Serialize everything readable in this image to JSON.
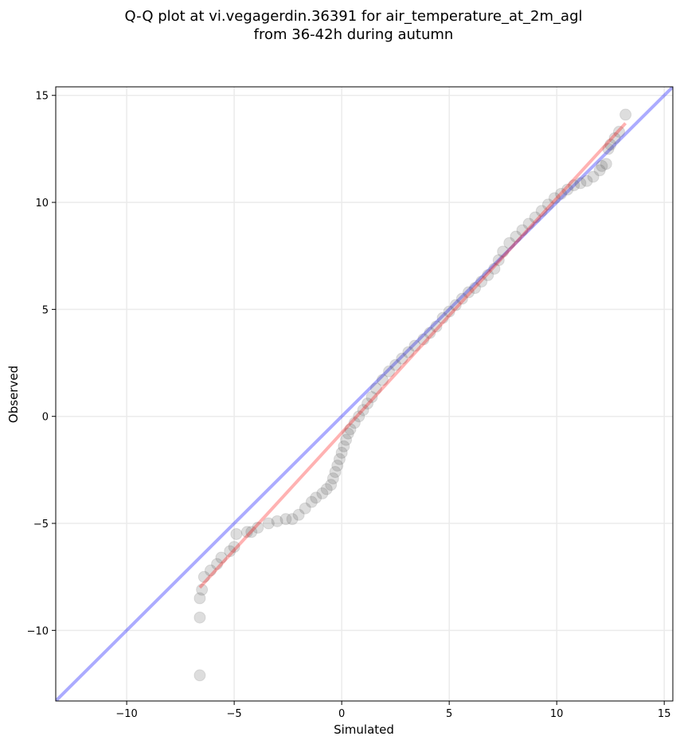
{
  "chart_data": {
    "type": "scatter",
    "title_line1": "Q-Q plot at vi.vegagerdin.36391 for air_temperature_at_2m_agl",
    "title_line2": "from 36-42h during autumn",
    "xlabel": "Simulated",
    "ylabel": "Observed",
    "xlim": [
      -13.3,
      15.4
    ],
    "ylim": [
      -13.3,
      15.4
    ],
    "xticks": [
      -10,
      -5,
      0,
      5,
      10,
      15
    ],
    "yticks": [
      -10,
      -5,
      0,
      5,
      10,
      15
    ],
    "xtick_labels": [
      "−10",
      "−5",
      "0",
      "5",
      "10",
      "15"
    ],
    "ytick_labels": [
      "−10",
      "−5",
      "0",
      "5",
      "10",
      "15"
    ],
    "grid": true,
    "reference_line": {
      "name": "1:1",
      "color": "#0000ff",
      "from": [
        -13.3,
        -13.3
      ],
      "to": [
        15.4,
        15.4
      ]
    },
    "fit_line": {
      "color": "#ff0000",
      "from": [
        -6.6,
        -8.0
      ],
      "to": [
        13.2,
        13.7
      ]
    },
    "point_color": "#555555",
    "series": [
      {
        "values": [
          [
            -6.6,
            -12.1
          ],
          [
            -6.6,
            -9.4
          ],
          [
            -6.6,
            -8.5
          ],
          [
            -6.5,
            -8.1
          ],
          [
            -6.4,
            -7.5
          ],
          [
            -6.1,
            -7.2
          ],
          [
            -5.8,
            -6.9
          ],
          [
            -5.6,
            -6.6
          ],
          [
            -5.2,
            -6.3
          ],
          [
            -5.0,
            -6.1
          ],
          [
            -4.9,
            -5.5
          ],
          [
            -4.4,
            -5.4
          ],
          [
            -4.2,
            -5.4
          ],
          [
            -3.9,
            -5.2
          ],
          [
            -3.4,
            -5.0
          ],
          [
            -3.0,
            -4.9
          ],
          [
            -2.6,
            -4.8
          ],
          [
            -2.3,
            -4.8
          ],
          [
            -2.0,
            -4.6
          ],
          [
            -1.7,
            -4.3
          ],
          [
            -1.4,
            -4.0
          ],
          [
            -1.2,
            -3.8
          ],
          [
            -0.9,
            -3.6
          ],
          [
            -0.7,
            -3.4
          ],
          [
            -0.5,
            -3.2
          ],
          [
            -0.4,
            -2.9
          ],
          [
            -0.3,
            -2.6
          ],
          [
            -0.2,
            -2.3
          ],
          [
            -0.1,
            -2.0
          ],
          [
            0.0,
            -1.7
          ],
          [
            0.1,
            -1.4
          ],
          [
            0.2,
            -1.1
          ],
          [
            0.3,
            -0.8
          ],
          [
            0.4,
            -0.6
          ],
          [
            0.6,
            -0.3
          ],
          [
            0.8,
            0.0
          ],
          [
            1.0,
            0.3
          ],
          [
            1.2,
            0.6
          ],
          [
            1.4,
            0.9
          ],
          [
            1.6,
            1.3
          ],
          [
            1.9,
            1.7
          ],
          [
            2.2,
            2.1
          ],
          [
            2.5,
            2.4
          ],
          [
            2.8,
            2.7
          ],
          [
            3.1,
            3.0
          ],
          [
            3.4,
            3.3
          ],
          [
            3.8,
            3.6
          ],
          [
            4.1,
            3.9
          ],
          [
            4.4,
            4.2
          ],
          [
            4.7,
            4.6
          ],
          [
            5.0,
            4.9
          ],
          [
            5.3,
            5.2
          ],
          [
            5.6,
            5.5
          ],
          [
            5.9,
            5.8
          ],
          [
            6.2,
            6.0
          ],
          [
            6.5,
            6.3
          ],
          [
            6.8,
            6.6
          ],
          [
            7.1,
            6.9
          ],
          [
            7.3,
            7.3
          ],
          [
            7.5,
            7.7
          ],
          [
            7.8,
            8.1
          ],
          [
            8.1,
            8.4
          ],
          [
            8.4,
            8.7
          ],
          [
            8.7,
            9.0
          ],
          [
            9.0,
            9.3
          ],
          [
            9.3,
            9.6
          ],
          [
            9.6,
            9.9
          ],
          [
            9.9,
            10.2
          ],
          [
            10.2,
            10.4
          ],
          [
            10.5,
            10.6
          ],
          [
            10.8,
            10.8
          ],
          [
            11.1,
            10.9
          ],
          [
            11.4,
            11.0
          ],
          [
            11.7,
            11.2
          ],
          [
            12.0,
            11.5
          ],
          [
            12.1,
            11.7
          ],
          [
            12.3,
            11.8
          ],
          [
            12.4,
            12.5
          ],
          [
            12.5,
            12.7
          ],
          [
            12.7,
            13.0
          ],
          [
            12.9,
            13.3
          ],
          [
            13.2,
            14.1
          ]
        ]
      }
    ]
  }
}
